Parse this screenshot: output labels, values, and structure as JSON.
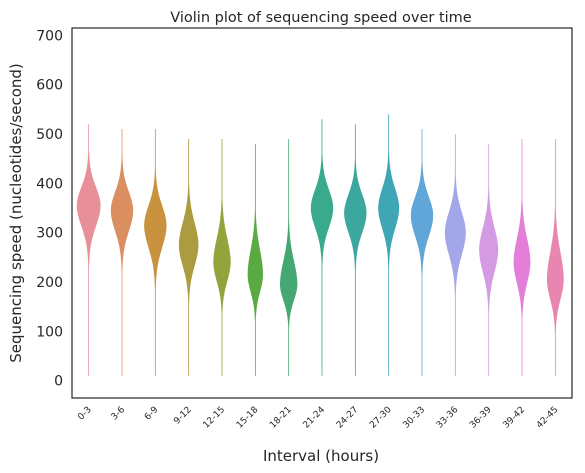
{
  "chart_data": {
    "type": "violin",
    "title": "Violin plot of sequencing speed over time",
    "xlabel": "Interval (hours)",
    "ylabel": "Sequencing speed (nucleotides/second)",
    "ylim": [
      -35,
      715
    ],
    "yticks": [
      0,
      100,
      200,
      300,
      400,
      500,
      600,
      700
    ],
    "grid": false,
    "categories": [
      "0-3",
      "3-6",
      "6-9",
      "9-12",
      "12-15",
      "15-18",
      "18-21",
      "21-24",
      "24-27",
      "27-30",
      "30-33",
      "33-36",
      "36-39",
      "39-42",
      "42-45"
    ],
    "colors": [
      "#e8909a",
      "#db8e60",
      "#c9923e",
      "#ad9b40",
      "#94a43c",
      "#5aaa44",
      "#45a872",
      "#3aaa8c",
      "#3ba79e",
      "#3ea6b4",
      "#61a6d8",
      "#a4a6ea",
      "#d49ae2",
      "#e37fd8",
      "#e986b0"
    ],
    "violins": [
      {
        "min": 10,
        "max": 520,
        "mode": 355,
        "sd_low": 42,
        "sd_high": 38,
        "width": 0.85
      },
      {
        "min": 10,
        "max": 510,
        "mode": 345,
        "sd_low": 42,
        "sd_high": 38,
        "width": 0.8
      },
      {
        "min": 10,
        "max": 510,
        "mode": 315,
        "sd_low": 45,
        "sd_high": 40,
        "width": 0.8
      },
      {
        "min": 10,
        "max": 490,
        "mode": 275,
        "sd_low": 42,
        "sd_high": 45,
        "width": 0.7
      },
      {
        "min": 10,
        "max": 490,
        "mode": 240,
        "sd_low": 38,
        "sd_high": 48,
        "width": 0.62
      },
      {
        "min": 10,
        "max": 480,
        "mode": 215,
        "sd_low": 35,
        "sd_high": 50,
        "width": 0.55
      },
      {
        "min": 10,
        "max": 490,
        "mode": 195,
        "sd_low": 32,
        "sd_high": 48,
        "width": 0.62
      },
      {
        "min": 10,
        "max": 530,
        "mode": 350,
        "sd_low": 40,
        "sd_high": 38,
        "width": 0.8
      },
      {
        "min": 10,
        "max": 520,
        "mode": 340,
        "sd_low": 40,
        "sd_high": 38,
        "width": 0.8
      },
      {
        "min": 10,
        "max": 540,
        "mode": 350,
        "sd_low": 42,
        "sd_high": 40,
        "width": 0.75
      },
      {
        "min": 10,
        "max": 510,
        "mode": 335,
        "sd_low": 42,
        "sd_high": 38,
        "width": 0.8
      },
      {
        "min": 10,
        "max": 500,
        "mode": 300,
        "sd_low": 45,
        "sd_high": 42,
        "width": 0.75
      },
      {
        "min": 10,
        "max": 480,
        "mode": 265,
        "sd_low": 45,
        "sd_high": 45,
        "width": 0.68
      },
      {
        "min": 10,
        "max": 490,
        "mode": 240,
        "sd_low": 42,
        "sd_high": 48,
        "width": 0.6
      },
      {
        "min": 10,
        "max": 490,
        "mode": 205,
        "sd_low": 40,
        "sd_high": 55,
        "width": 0.6
      }
    ]
  }
}
